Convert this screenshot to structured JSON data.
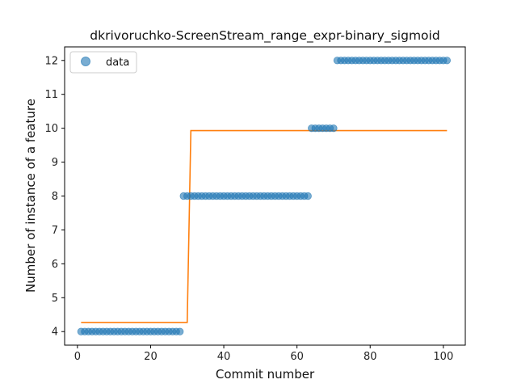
{
  "chart_data": {
    "type": "scatter",
    "title": "dkrivoruchko-ScreenStream_range_expr-binary_sigmoid",
    "xlabel": "Commit number",
    "ylabel": "Number of instance of a feature",
    "xlim": [
      -3.5,
      106
    ],
    "ylim": [
      3.6,
      12.4
    ],
    "xticks": [
      0,
      20,
      40,
      60,
      80,
      100
    ],
    "yticks": [
      4,
      5,
      6,
      7,
      8,
      9,
      10,
      11,
      12
    ],
    "grid": false,
    "legend": {
      "placement": "top-left",
      "entries": [
        "data"
      ]
    },
    "series": [
      {
        "name": "data",
        "kind": "scatter",
        "color": "#1f77b4",
        "segments": [
          {
            "x_from": 1,
            "x_to": 28,
            "y": 4
          },
          {
            "x_from": 29,
            "x_to": 63,
            "y": 8
          },
          {
            "x_from": 64,
            "x_to": 70,
            "y": 10
          },
          {
            "x_from": 71,
            "x_to": 101,
            "y": 12
          }
        ]
      },
      {
        "kind": "line",
        "color": "#ff7f0e",
        "points": [
          [
            1,
            4.27
          ],
          [
            30,
            4.27
          ],
          [
            31,
            9.93
          ],
          [
            101,
            9.93
          ]
        ]
      }
    ]
  }
}
